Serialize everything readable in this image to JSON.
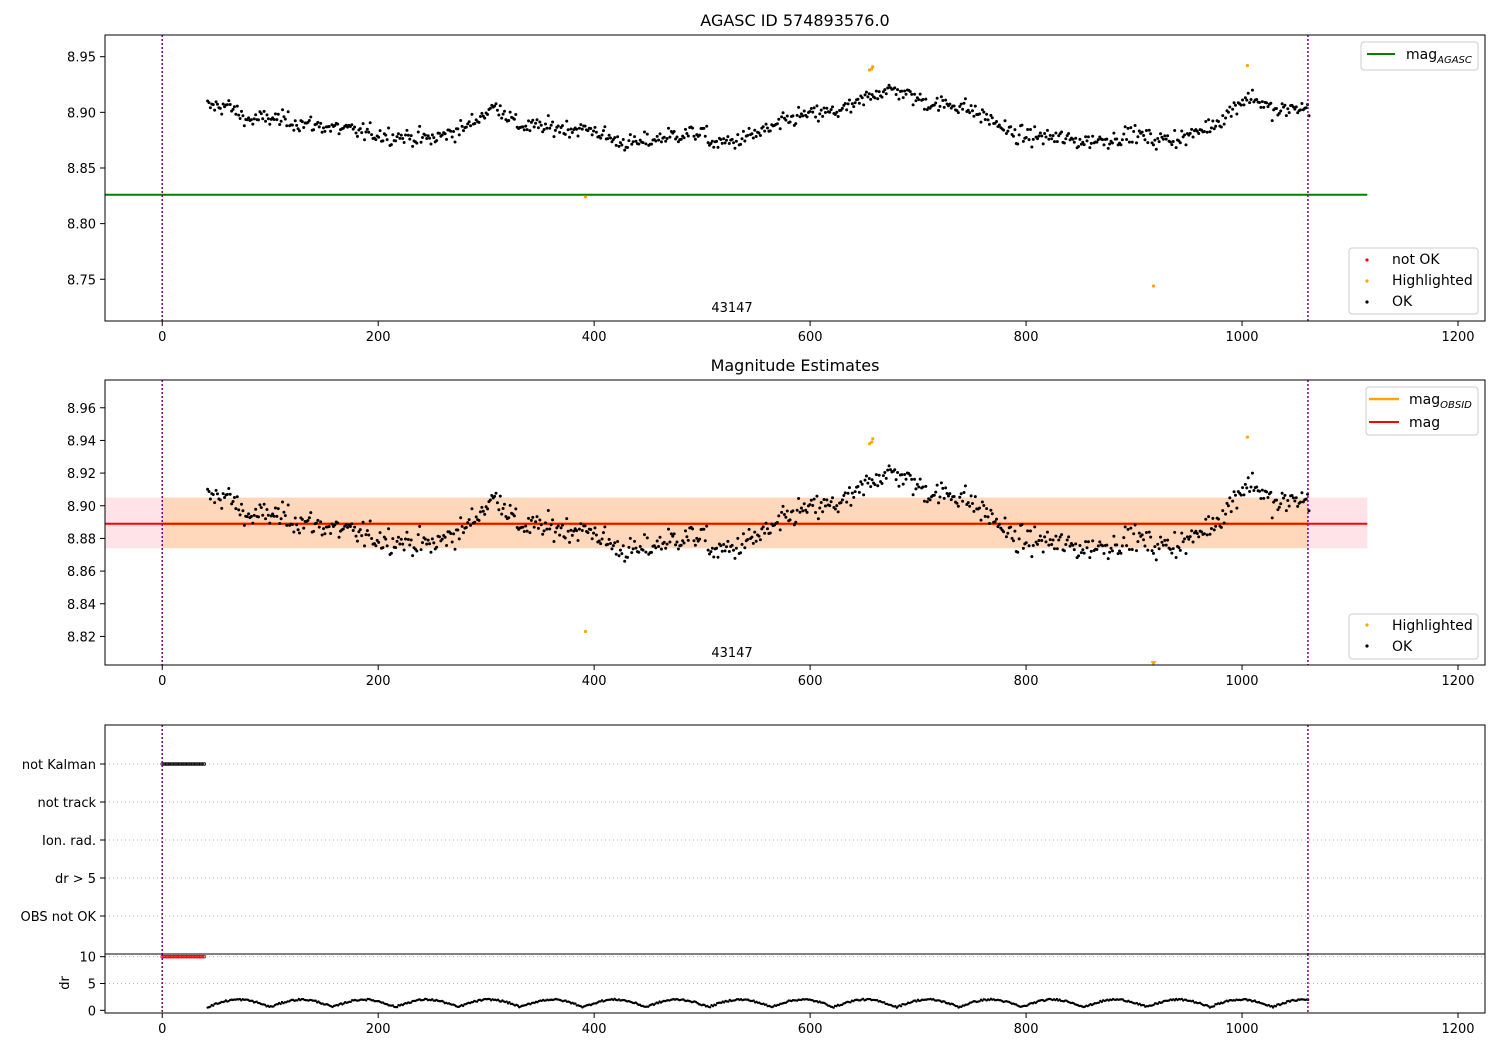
{
  "chart_data": [
    {
      "type": "scatter",
      "title": "AGASC ID 574893576.0",
      "xlim": [
        -53,
        1225
      ],
      "ylim": [
        8.7125,
        8.9695
      ],
      "x_ticks": [
        0,
        200,
        400,
        600,
        800,
        1000,
        1200
      ],
      "y_ticks": [
        8.75,
        8.8,
        8.85,
        8.9,
        8.95
      ],
      "y_tick_labels": [
        "8.75",
        "8.80",
        "8.85",
        "8.90",
        "8.95"
      ],
      "vlines": [
        0,
        1061
      ],
      "annotation": {
        "text": "43147",
        "x": 530
      },
      "hlines": [
        {
          "name": "magAGASC",
          "y": 8.826,
          "x0": -53,
          "x1": 1116,
          "color": "#008000"
        }
      ],
      "legend_lines": [
        {
          "label": "mag",
          "sub": "AGASC",
          "color": "#008000",
          "position": "upper right"
        }
      ],
      "legend_points": [
        {
          "label": "not OK",
          "color": "#ff0000"
        },
        {
          "label": "Highlighted",
          "color": "#ffa500"
        },
        {
          "label": "OK",
          "color": "#000000"
        }
      ],
      "series": [
        {
          "name": "OK",
          "color": "#000000",
          "x_range": [
            42,
            1062
          ],
          "count": 780
        },
        {
          "name": "Highlighted",
          "color": "#ffa500",
          "points": [
            [
              392,
              8.824
            ],
            [
              655,
              8.938
            ],
            [
              657,
              8.939
            ],
            [
              658,
              8.941
            ],
            [
              1005,
              8.942
            ],
            [
              918,
              8.744
            ]
          ]
        }
      ]
    },
    {
      "type": "scatter",
      "title": "Magnitude Estimates",
      "xlim": [
        -53,
        1225
      ],
      "ylim": [
        8.8025,
        8.977
      ],
      "x_ticks": [
        0,
        200,
        400,
        600,
        800,
        1000,
        1200
      ],
      "y_ticks": [
        8.82,
        8.84,
        8.86,
        8.88,
        8.9,
        8.92,
        8.94,
        8.96
      ],
      "y_tick_labels": [
        "8.82",
        "8.84",
        "8.86",
        "8.88",
        "8.90",
        "8.92",
        "8.94",
        "8.96"
      ],
      "vlines": [
        0,
        1061
      ],
      "annotation": {
        "text": "43147",
        "x": 530
      },
      "band": {
        "y0": 8.874,
        "y1": 8.905,
        "x0": -53,
        "x1": 1116,
        "color": "#ffc0cb"
      },
      "band_inner": {
        "y0": 8.874,
        "y1": 8.905,
        "x0": 0,
        "x1": 1061,
        "color": "#ffd5b5"
      },
      "hlines": [
        {
          "name": "mag",
          "y": 8.889,
          "x0": -53,
          "x1": 1116,
          "color": "#ff0000"
        },
        {
          "name": "magOBSID",
          "y": 8.889,
          "x0": 0,
          "x1": 1061,
          "color": "#ffa500"
        }
      ],
      "legend_lines": [
        {
          "label": "mag",
          "sub": "OBSID",
          "color": "#ffa500",
          "position": "upper right"
        },
        {
          "label": "mag",
          "sub": "",
          "color": "#ff0000",
          "position": "upper right"
        }
      ],
      "legend_points": [
        {
          "label": "Highlighted",
          "color": "#ffa500"
        },
        {
          "label": "OK",
          "color": "#000000"
        }
      ],
      "series": [
        {
          "name": "OK",
          "color": "#000000",
          "x_range": [
            42,
            1062
          ],
          "count": 780
        },
        {
          "name": "Highlighted",
          "color": "#ffa500",
          "points": [
            [
              392,
              8.823
            ],
            [
              655,
              8.938
            ],
            [
              657,
              8.939
            ],
            [
              658,
              8.941
            ],
            [
              1005,
              8.942
            ],
            [
              918,
              8.803
            ]
          ]
        }
      ]
    },
    {
      "type": "scatter",
      "title": "",
      "xlim": [
        -53,
        1225
      ],
      "categories": [
        "not Kalman",
        "not track",
        "Ion. rad.",
        "dr > 5",
        "OBS not OK"
      ],
      "flags": [
        {
          "category": "not Kalman",
          "x_range": [
            0,
            40
          ]
        }
      ],
      "vlines": [
        0,
        1061
      ]
    },
    {
      "type": "scatter",
      "title": "",
      "ylabel": "dr",
      "xlim": [
        -53,
        1225
      ],
      "ylim": [
        -0.5,
        10.5
      ],
      "x_ticks": [
        0,
        200,
        400,
        600,
        800,
        1000,
        1200
      ],
      "y_ticks": [
        0,
        5,
        10
      ],
      "vlines": [
        0,
        1061
      ],
      "series": [
        {
          "name": "dr > 5",
          "color": "#ff0000",
          "x_range": [
            0,
            40
          ],
          "y": 10
        },
        {
          "name": "dr",
          "color": "#000000",
          "x_range": [
            42,
            1062
          ]
        }
      ]
    }
  ]
}
